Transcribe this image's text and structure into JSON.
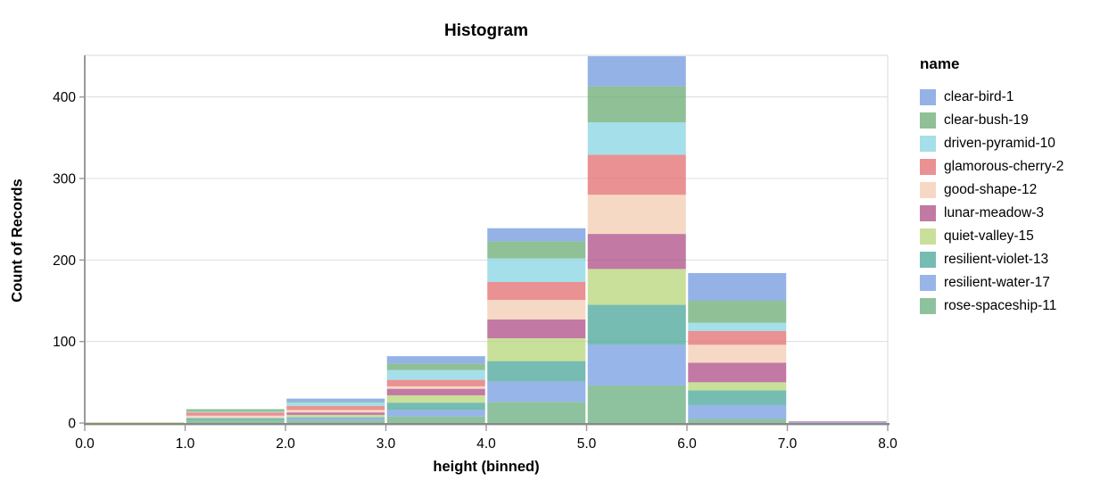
{
  "chart_data": {
    "type": "bar",
    "subtype": "stacked-histogram",
    "title": "Histogram",
    "xlabel": "height (binned)",
    "ylabel": "Count of Records",
    "legend_title": "name",
    "legend_position": "right",
    "grid": "horizontal",
    "xlim": [
      0,
      8
    ],
    "ylim": [
      0,
      450
    ],
    "bin_edges": [
      0,
      1,
      2,
      3,
      4,
      5,
      6,
      7,
      8
    ],
    "x_tick_labels": [
      "0.0",
      "1.0",
      "2.0",
      "3.0",
      "4.0",
      "5.0",
      "6.0",
      "7.0",
      "8.0"
    ],
    "y_ticks": [
      0,
      100,
      200,
      300,
      400
    ],
    "y_tick_labels": [
      "0",
      "100",
      "200",
      "300",
      "400"
    ],
    "bin_totals": [
      1,
      17,
      30,
      82,
      239,
      450,
      184,
      2
    ],
    "stack_order_note": "first series renders at top of stack, last at bottom",
    "series": [
      {
        "name": "clear-bird-1",
        "color": "#7098DE",
        "values": [
          0,
          0,
          4,
          9,
          16,
          37,
          34,
          0
        ]
      },
      {
        "name": "clear-bush-19",
        "color": "#6AAB73",
        "values": [
          0,
          3,
          1,
          8,
          21,
          44,
          27,
          0
        ]
      },
      {
        "name": "driven-pyramid-10",
        "color": "#87D4E2",
        "values": [
          0,
          1,
          4,
          12,
          29,
          40,
          10,
          0
        ]
      },
      {
        "name": "glamorous-cherry-2",
        "color": "#E36C6F",
        "values": [
          0,
          4,
          5,
          8,
          22,
          49,
          17,
          0
        ]
      },
      {
        "name": "good-shape-12",
        "color": "#F3CCB0",
        "values": [
          0,
          3,
          3,
          3,
          24,
          48,
          22,
          0
        ]
      },
      {
        "name": "lunar-meadow-3",
        "color": "#AE4C86",
        "values": [
          0,
          0,
          3,
          8,
          23,
          43,
          24,
          1
        ]
      },
      {
        "name": "quiet-valley-15",
        "color": "#B7D678",
        "values": [
          1,
          0,
          3,
          9,
          28,
          44,
          10,
          0
        ]
      },
      {
        "name": "resilient-violet-13",
        "color": "#48A698",
        "values": [
          0,
          3,
          1,
          9,
          25,
          49,
          18,
          0
        ]
      },
      {
        "name": "resilient-water-17",
        "color": "#749CE0",
        "values": [
          0,
          0,
          3,
          8,
          25,
          50,
          17,
          1
        ]
      },
      {
        "name": "rose-spaceship-11",
        "color": "#68AE7E",
        "values": [
          0,
          3,
          3,
          8,
          26,
          46,
          5,
          0
        ]
      }
    ],
    "style_colors": {
      "grid": "#dddddd",
      "axis_domain": "#888888",
      "tick": "#999999",
      "plot_border": "#d9d9d9",
      "bar_opacity": 0.75
    }
  }
}
